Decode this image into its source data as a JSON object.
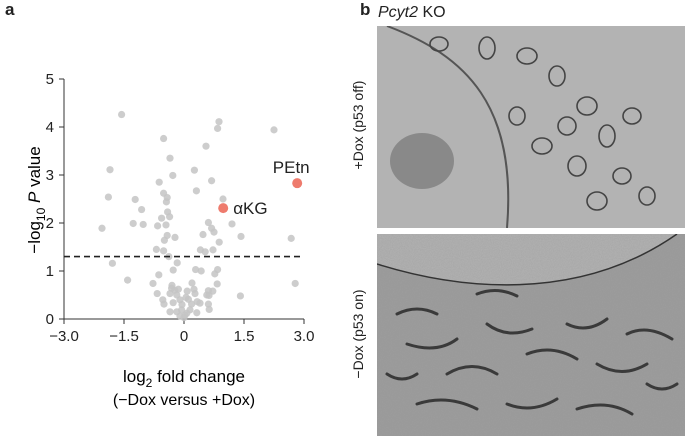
{
  "panel_a_label": "a",
  "panel_b_label": "b",
  "panel_b": {
    "genotype_italic": "Pcyt2",
    "genotype_suffix": " KO",
    "top_image_label": "+Dox (p53 off)",
    "bottom_image_label": "−Dox (p53 on)"
  },
  "chart_data": {
    "type": "scatter",
    "ylabel_prefix": "−log",
    "ylabel_sub": "10",
    "ylabel_italic": "P",
    "ylabel_suffix": " value",
    "xlabel_prefix": "log",
    "xlabel_sub": "2",
    "xlabel_suffix": " fold change",
    "xlabel_line2": "(−Dox versus +Dox)",
    "xlim": [
      -3.0,
      3.0
    ],
    "ylim": [
      0,
      5
    ],
    "xticks": [
      "−3.0",
      "−1.5",
      "0",
      "1.5",
      "3.0"
    ],
    "xtick_values": [
      -3.0,
      -1.5,
      0,
      1.5,
      3.0
    ],
    "yticks": [
      "0",
      "1",
      "2",
      "3",
      "4",
      "5"
    ],
    "ytick_values": [
      0,
      1,
      2,
      3,
      4,
      5
    ],
    "threshold_line_y": 1.3,
    "grid": false,
    "colors": {
      "background_points": "#c4c4c4",
      "highlight_points": "#ee7b6d",
      "threshold": "#222222"
    },
    "highlighted": [
      {
        "label": "PEtn",
        "x": 2.83,
        "y": 2.83
      },
      {
        "label": "αKG",
        "x": 0.98,
        "y": 2.31
      }
    ],
    "points": [
      [
        -1.56,
        4.26
      ],
      [
        0.875,
        4.11
      ],
      [
        0.84,
        3.97
      ],
      [
        2.25,
        3.94
      ],
      [
        -0.51,
        3.76
      ],
      [
        0.55,
        3.6
      ],
      [
        -0.35,
        3.35
      ],
      [
        -1.85,
        3.11
      ],
      [
        0.26,
        3.1
      ],
      [
        -0.28,
        2.99
      ],
      [
        -0.62,
        2.85
      ],
      [
        0.69,
        2.88
      ],
      [
        -0.51,
        2.62
      ],
      [
        0.31,
        2.67
      ],
      [
        -1.89,
        2.54
      ],
      [
        -1.22,
        2.49
      ],
      [
        -0.42,
        2.53
      ],
      [
        0.975,
        2.5
      ],
      [
        -0.44,
        2.44
      ],
      [
        -1.06,
        2.28
      ],
      [
        -0.41,
        2.23
      ],
      [
        -0.56,
        2.1
      ],
      [
        -0.36,
        2.13
      ],
      [
        -1.27,
        1.99
      ],
      [
        -1.02,
        1.97
      ],
      [
        -0.66,
        1.94
      ],
      [
        -0.45,
        1.96
      ],
      [
        0.61,
        2.01
      ],
      [
        1.2,
        1.98
      ],
      [
        -2.05,
        1.89
      ],
      [
        0.69,
        1.89
      ],
      [
        0.75,
        1.81
      ],
      [
        0.475,
        1.76
      ],
      [
        -0.42,
        1.74
      ],
      [
        -0.225,
        1.7
      ],
      [
        1.425,
        1.72
      ],
      [
        2.68,
        1.68
      ],
      [
        -0.49,
        1.64
      ],
      [
        0.88,
        1.6
      ],
      [
        -0.69,
        1.45
      ],
      [
        0.41,
        1.44
      ],
      [
        0.53,
        1.4
      ],
      [
        0.725,
        1.44
      ],
      [
        -0.51,
        1.42
      ],
      [
        -0.38,
        1.3
      ],
      [
        -1.79,
        1.16
      ],
      [
        -0.17,
        1.17
      ],
      [
        -0.27,
        1.02
      ],
      [
        0.29,
        1.03
      ],
      [
        0.43,
        1.0
      ],
      [
        0.84,
        1.03
      ],
      [
        -0.63,
        0.92
      ],
      [
        0.77,
        0.94
      ],
      [
        -1.41,
        0.81
      ],
      [
        -0.775,
        0.74
      ],
      [
        2.78,
        0.74
      ],
      [
        0.83,
        0.73
      ],
      [
        1.41,
        0.48
      ],
      [
        -0.31,
        0.64
      ],
      [
        -0.23,
        0.6
      ],
      [
        -0.14,
        0.62
      ],
      [
        0.08,
        0.58
      ],
      [
        0.25,
        0.62
      ],
      [
        0.61,
        0.59
      ],
      [
        0.72,
        0.58
      ],
      [
        -0.67,
        0.53
      ],
      [
        -0.35,
        0.53
      ],
      [
        -0.18,
        0.5
      ],
      [
        0.275,
        0.53
      ],
      [
        0.57,
        0.5
      ],
      [
        -0.53,
        0.4
      ],
      [
        -0.1,
        0.4
      ],
      [
        0.11,
        0.41
      ],
      [
        0.33,
        0.36
      ],
      [
        0.625,
        0.49
      ],
      [
        -0.5,
        0.31
      ],
      [
        -0.27,
        0.34
      ],
      [
        0.19,
        0.31
      ],
      [
        0.4,
        0.33
      ],
      [
        0.61,
        0.31
      ],
      [
        -0.35,
        0.15
      ],
      [
        -0.18,
        0.15
      ],
      [
        -0.06,
        0.19
      ],
      [
        0.07,
        0.12
      ],
      [
        0.15,
        0.19
      ],
      [
        0.32,
        0.13
      ],
      [
        0.63,
        0.2
      ],
      [
        -0.1,
        0.06
      ],
      [
        0,
        0.03
      ],
      [
        0.025,
        0.08
      ],
      [
        -0.3,
        0.7
      ],
      [
        0.2,
        0.75
      ],
      [
        -0.05,
        0.3
      ],
      [
        0.05,
        0.45
      ]
    ]
  }
}
